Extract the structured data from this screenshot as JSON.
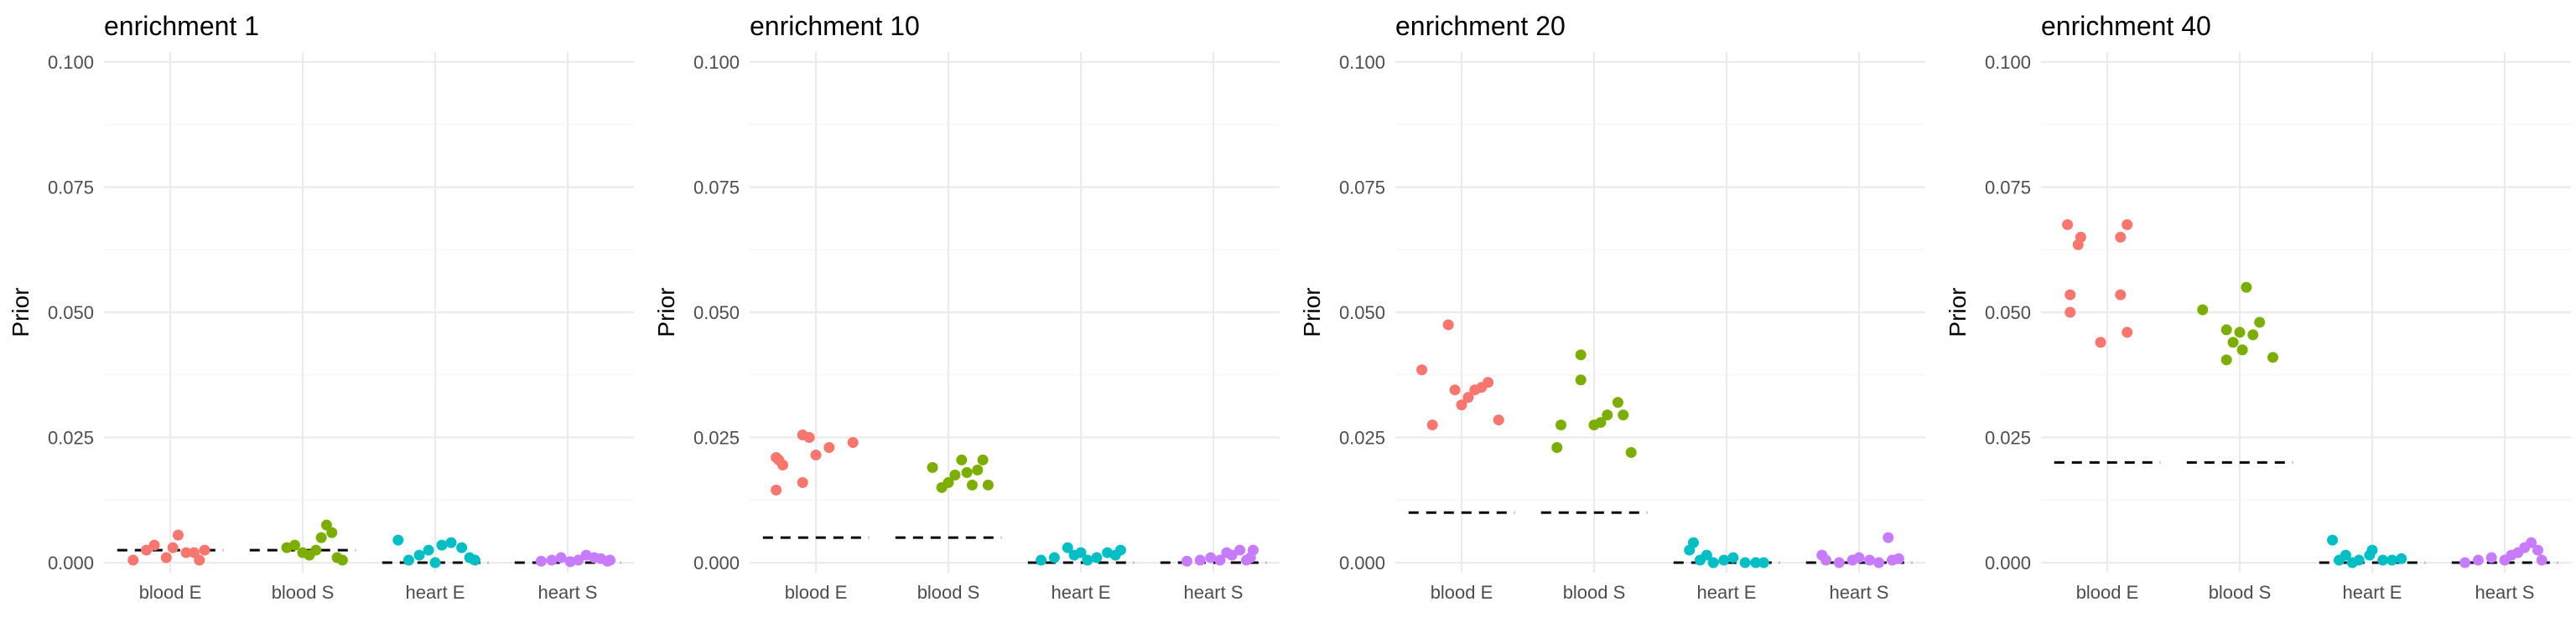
{
  "chart_data": {
    "type": "scatter",
    "ylabel": "Prior",
    "ylim": [
      -0.002,
      0.102
    ],
    "yticks": [
      0.0,
      0.025,
      0.05,
      0.075,
      0.1
    ],
    "ytick_labels": [
      "0.000",
      "0.025",
      "0.050",
      "0.075",
      "0.100"
    ],
    "categories": [
      "blood E",
      "blood S",
      "heart E",
      "heart S"
    ],
    "colors": {
      "blood E": "#F8766D",
      "blood S": "#7CAE00",
      "heart E": "#00BFC4",
      "heart S": "#C77CFF"
    },
    "reference_color": "#000000",
    "panels": [
      {
        "title": "enrichment 1",
        "reference": [
          0.0025,
          0.0025,
          0.0,
          0.0
        ],
        "points": [
          [
            [
              -0.28,
              0.0005
            ],
            [
              -0.18,
              0.0025
            ],
            [
              -0.12,
              0.0035
            ],
            [
              -0.03,
              0.001
            ],
            [
              0.02,
              0.003
            ],
            [
              0.06,
              0.0055
            ],
            [
              0.12,
              0.002
            ],
            [
              0.18,
              0.002
            ],
            [
              0.22,
              0.0005
            ],
            [
              0.26,
              0.0025
            ]
          ],
          [
            [
              -0.12,
              0.003
            ],
            [
              -0.06,
              0.0035
            ],
            [
              0.0,
              0.002
            ],
            [
              0.1,
              0.0025
            ],
            [
              0.14,
              0.005
            ],
            [
              0.18,
              0.0075
            ],
            [
              0.22,
              0.006
            ],
            [
              0.26,
              0.001
            ],
            [
              0.3,
              0.0005
            ],
            [
              0.05,
              0.0015
            ]
          ],
          [
            [
              -0.28,
              0.0045
            ],
            [
              -0.2,
              0.0005
            ],
            [
              -0.12,
              0.0015
            ],
            [
              -0.05,
              0.0025
            ],
            [
              0.0,
              0.0
            ],
            [
              0.05,
              0.0035
            ],
            [
              0.12,
              0.004
            ],
            [
              0.2,
              0.003
            ],
            [
              0.26,
              0.001
            ],
            [
              0.3,
              0.0005
            ]
          ],
          [
            [
              -0.2,
              0.0003
            ],
            [
              -0.12,
              0.0005
            ],
            [
              -0.05,
              0.001
            ],
            [
              0.02,
              0.0002
            ],
            [
              0.08,
              0.0005
            ],
            [
              0.14,
              0.0015
            ],
            [
              0.2,
              0.001
            ],
            [
              0.25,
              0.0008
            ],
            [
              0.3,
              0.0003
            ],
            [
              0.32,
              0.0005
            ]
          ]
        ]
      },
      {
        "title": "enrichment 10",
        "reference": [
          0.005,
          0.005,
          0.0,
          0.0
        ],
        "points": [
          [
            [
              -0.3,
              0.021
            ],
            [
              -0.28,
              0.0205
            ],
            [
              -0.25,
              0.0195
            ],
            [
              -0.3,
              0.0145
            ],
            [
              -0.1,
              0.016
            ],
            [
              -0.1,
              0.0255
            ],
            [
              -0.05,
              0.025
            ],
            [
              0.0,
              0.0215
            ],
            [
              0.1,
              0.023
            ],
            [
              0.28,
              0.024
            ]
          ],
          [
            [
              -0.12,
              0.019
            ],
            [
              -0.05,
              0.015
            ],
            [
              0.0,
              0.016
            ],
            [
              0.05,
              0.0175
            ],
            [
              0.1,
              0.0205
            ],
            [
              0.14,
              0.018
            ],
            [
              0.18,
              0.0155
            ],
            [
              0.22,
              0.0185
            ],
            [
              0.26,
              0.0205
            ],
            [
              0.3,
              0.0155
            ]
          ],
          [
            [
              -0.3,
              0.0005
            ],
            [
              -0.2,
              0.001
            ],
            [
              -0.1,
              0.003
            ],
            [
              -0.05,
              0.0015
            ],
            [
              0.0,
              0.002
            ],
            [
              0.05,
              0.0005
            ],
            [
              0.12,
              0.001
            ],
            [
              0.2,
              0.002
            ],
            [
              0.26,
              0.0015
            ],
            [
              0.3,
              0.0025
            ]
          ],
          [
            [
              -0.2,
              0.0003
            ],
            [
              -0.1,
              0.0005
            ],
            [
              -0.02,
              0.001
            ],
            [
              0.05,
              0.0005
            ],
            [
              0.1,
              0.002
            ],
            [
              0.14,
              0.0015
            ],
            [
              0.2,
              0.0025
            ],
            [
              0.25,
              0.0005
            ],
            [
              0.28,
              0.001
            ],
            [
              0.3,
              0.0025
            ]
          ]
        ]
      },
      {
        "title": "enrichment 20",
        "reference": [
          0.01,
          0.01,
          0.0,
          0.0
        ],
        "points": [
          [
            [
              -0.3,
              0.0385
            ],
            [
              -0.22,
              0.0275
            ],
            [
              -0.1,
              0.0475
            ],
            [
              -0.05,
              0.0345
            ],
            [
              0.0,
              0.0315
            ],
            [
              0.05,
              0.033
            ],
            [
              0.1,
              0.0345
            ],
            [
              0.15,
              0.035
            ],
            [
              0.2,
              0.036
            ],
            [
              0.28,
              0.0285
            ]
          ],
          [
            [
              -0.28,
              0.023
            ],
            [
              -0.25,
              0.0275
            ],
            [
              -0.1,
              0.0415
            ],
            [
              -0.1,
              0.0365
            ],
            [
              0.0,
              0.0275
            ],
            [
              0.05,
              0.028
            ],
            [
              0.1,
              0.0295
            ],
            [
              0.18,
              0.032
            ],
            [
              0.22,
              0.0295
            ],
            [
              0.28,
              0.022
            ]
          ],
          [
            [
              -0.28,
              0.0025
            ],
            [
              -0.25,
              0.004
            ],
            [
              -0.2,
              0.0005
            ],
            [
              -0.15,
              0.0015
            ],
            [
              -0.1,
              0.0
            ],
            [
              -0.02,
              0.0005
            ],
            [
              0.05,
              0.001
            ],
            [
              0.14,
              0.0
            ],
            [
              0.22,
              0.0
            ],
            [
              0.28,
              0.0
            ]
          ],
          [
            [
              -0.28,
              0.0015
            ],
            [
              -0.25,
              0.0005
            ],
            [
              -0.15,
              0.0
            ],
            [
              -0.05,
              0.0005
            ],
            [
              0.0,
              0.001
            ],
            [
              0.08,
              0.0005
            ],
            [
              0.15,
              0.0
            ],
            [
              0.22,
              0.005
            ],
            [
              0.25,
              0.0005
            ],
            [
              0.3,
              0.0008
            ]
          ]
        ]
      },
      {
        "title": "enrichment 40",
        "reference": [
          0.02,
          0.02,
          0.0,
          0.0
        ],
        "points": [
          [
            [
              -0.3,
              0.0675
            ],
            [
              -0.22,
              0.0635
            ],
            [
              -0.2,
              0.065
            ],
            [
              -0.28,
              0.0535
            ],
            [
              -0.28,
              0.05
            ],
            [
              -0.05,
              0.044
            ],
            [
              0.1,
              0.0535
            ],
            [
              0.15,
              0.046
            ],
            [
              0.1,
              0.065
            ],
            [
              0.15,
              0.0675
            ]
          ],
          [
            [
              -0.28,
              0.0505
            ],
            [
              -0.1,
              0.0465
            ],
            [
              -0.05,
              0.044
            ],
            [
              -0.1,
              0.0405
            ],
            [
              0.0,
              0.046
            ],
            [
              0.05,
              0.055
            ],
            [
              0.1,
              0.0455
            ],
            [
              0.15,
              0.048
            ],
            [
              0.25,
              0.041
            ],
            [
              0.02,
              0.0425
            ]
          ],
          [
            [
              -0.3,
              0.0045
            ],
            [
              -0.25,
              0.0005
            ],
            [
              -0.2,
              0.0015
            ],
            [
              -0.15,
              0.0
            ],
            [
              -0.1,
              0.0005
            ],
            [
              -0.02,
              0.0015
            ],
            [
              0.0,
              0.0025
            ],
            [
              0.08,
              0.0005
            ],
            [
              0.15,
              0.0005
            ],
            [
              0.22,
              0.0008
            ]
          ],
          [
            [
              -0.3,
              0.0
            ],
            [
              -0.2,
              0.0005
            ],
            [
              -0.1,
              0.001
            ],
            [
              0.0,
              0.0005
            ],
            [
              0.05,
              0.0015
            ],
            [
              0.1,
              0.002
            ],
            [
              0.15,
              0.003
            ],
            [
              0.2,
              0.004
            ],
            [
              0.25,
              0.0025
            ],
            [
              0.28,
              0.0005
            ]
          ]
        ]
      }
    ]
  }
}
